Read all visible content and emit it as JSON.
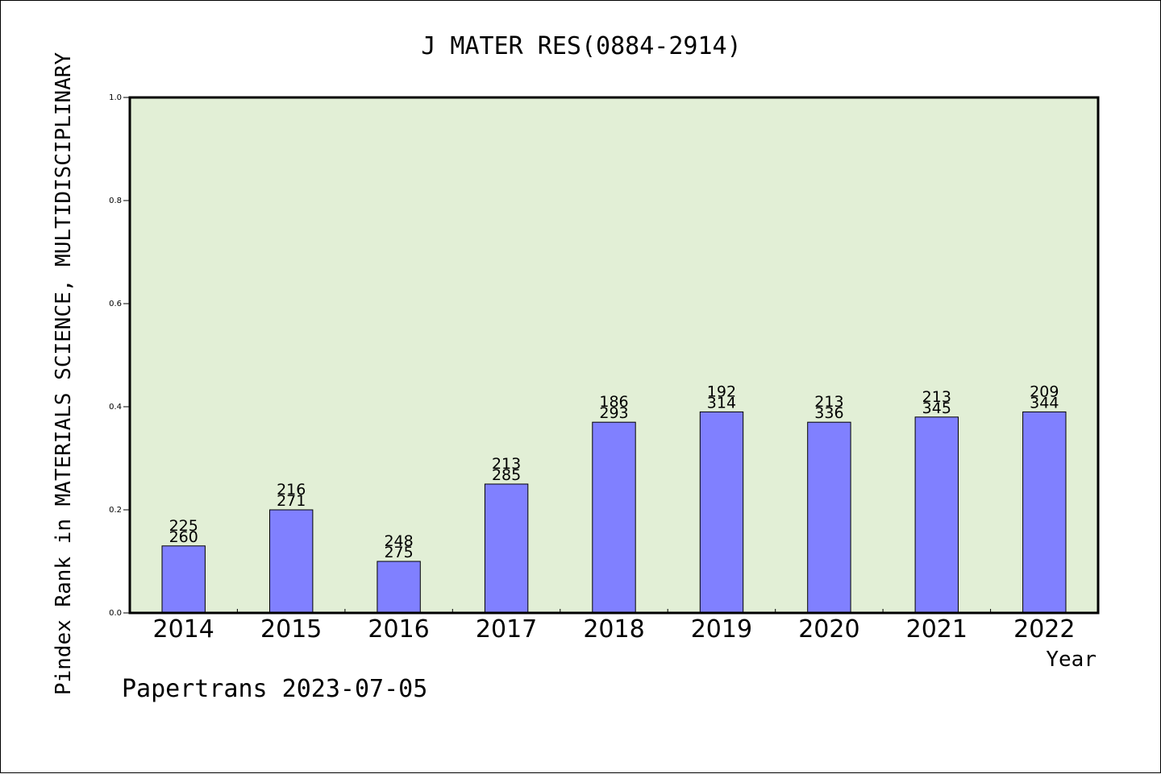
{
  "chart_data": {
    "type": "bar",
    "title": "J MATER RES(0884-2914)",
    "xlabel": "Year",
    "ylabel": "Pindex Rank in MATERIALS SCIENCE, MULTIDISCIPLINARY",
    "footer": "Papertrans 2023-07-05",
    "ylim": [
      0,
      1.0
    ],
    "yticks": [
      "0.0",
      "0.2",
      "0.4",
      "0.6",
      "0.8",
      "1.0"
    ],
    "grid": false,
    "categories": [
      "2014",
      "2015",
      "2016",
      "2017",
      "2018",
      "2019",
      "2020",
      "2021",
      "2022"
    ],
    "values": [
      0.13,
      0.2,
      0.1,
      0.25,
      0.37,
      0.39,
      0.37,
      0.38,
      0.39
    ],
    "labels_top": [
      "225",
      "216",
      "248",
      "213",
      "186",
      "192",
      "213",
      "213",
      "209"
    ],
    "labels_bottom": [
      "260",
      "271",
      "275",
      "285",
      "293",
      "314",
      "336",
      "345",
      "344"
    ],
    "colors": {
      "plot_background": "#e2efd6",
      "bar_fill": "#8080ff",
      "bar_stroke": "#000000"
    }
  }
}
